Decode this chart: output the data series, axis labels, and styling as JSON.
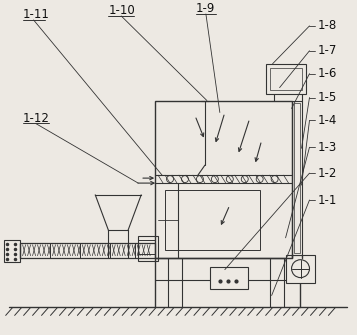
{
  "bg_color": "#ede9e3",
  "line_color": "#333333",
  "label_color": "#111111",
  "label_fontsize": 8.5,
  "fig_w": 3.57,
  "fig_h": 3.35,
  "dpi": 100
}
